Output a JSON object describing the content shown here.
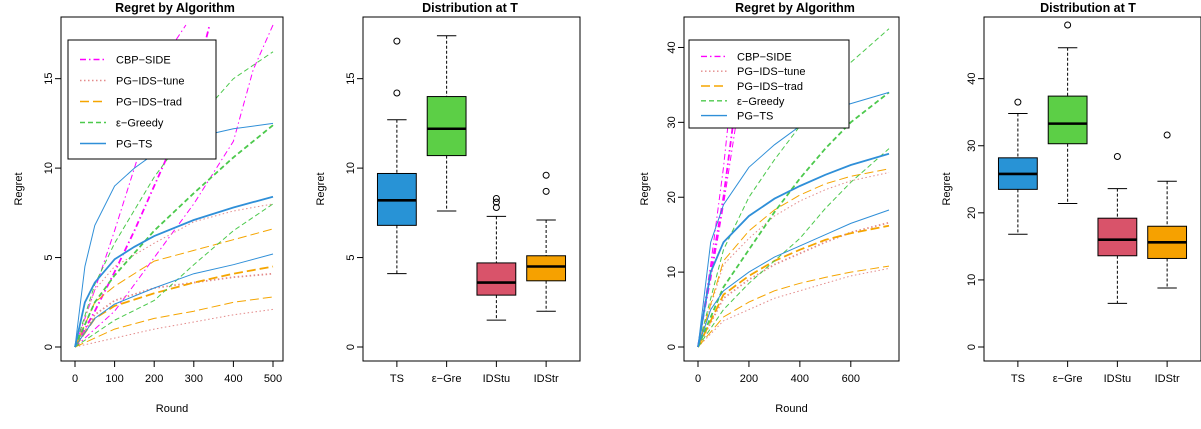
{
  "colors": {
    "cbp_side": "#ff00ff",
    "pg_ids_tune": "#e38a8a",
    "pg_ids_trad": "#f5a500",
    "e_greedy": "#4cc94c",
    "pg_ts": "#2f8fd8",
    "box_ts": "#2893d6",
    "box_egreedy": "#5ccf46",
    "box_idstu": "#d9536a",
    "box_idstr": "#f6a100"
  },
  "chart_data": [
    {
      "type": "line",
      "title": "Regret by Algorithm",
      "xlabel": "Round",
      "ylabel": "Regret",
      "xlim": [
        0,
        500
      ],
      "ylim": [
        0,
        18
      ],
      "xticks": [
        0,
        100,
        200,
        300,
        400,
        500
      ],
      "yticks": [
        0,
        5,
        10,
        15
      ],
      "grid": false,
      "legend_position": "top-left",
      "legend": [
        {
          "label": "CBP−SIDE",
          "color_key": "cbp_side",
          "style": "dashdot"
        },
        {
          "label": "PG−IDS−tune",
          "color_key": "pg_ids_tune",
          "style": "dotted"
        },
        {
          "label": "PG−IDS−trad",
          "color_key": "pg_ids_trad",
          "style": "longdash"
        },
        {
          "label": "ε−Greedy",
          "color_key": "e_greedy",
          "style": "dashed"
        },
        {
          "label": "PG−TS",
          "color_key": "pg_ts",
          "style": "solid"
        }
      ],
      "series": [
        {
          "name": "CBP−SIDE",
          "role": "mean",
          "x": [
            0,
            50,
            100,
            150,
            200,
            250,
            300,
            340
          ],
          "y": [
            0,
            2.0,
            4.2,
            6.5,
            9.0,
            11.5,
            14.5,
            18
          ]
        },
        {
          "name": "CBP−SIDE",
          "role": "upper",
          "x": [
            0,
            50,
            100,
            150,
            200,
            250,
            280
          ],
          "y": [
            0,
            3.2,
            6.5,
            10.0,
            13.5,
            17.0,
            18
          ]
        },
        {
          "name": "CBP−SIDE",
          "role": "lower",
          "x": [
            0,
            100,
            200,
            300,
            400,
            450,
            500
          ],
          "y": [
            0,
            2.0,
            5.0,
            8.0,
            11.5,
            15.5,
            18
          ]
        },
        {
          "name": "PG−IDS−tune",
          "role": "mean",
          "x": [
            0,
            50,
            100,
            200,
            300,
            400,
            500
          ],
          "y": [
            0,
            1.8,
            2.6,
            3.3,
            3.6,
            3.9,
            4.1
          ]
        },
        {
          "name": "PG−IDS−tune",
          "role": "upper",
          "x": [
            0,
            50,
            100,
            200,
            300,
            400,
            500
          ],
          "y": [
            0,
            3.2,
            4.5,
            5.8,
            7.0,
            7.6,
            8.0
          ]
        },
        {
          "name": "PG−IDS−tune",
          "role": "lower",
          "x": [
            0,
            100,
            200,
            300,
            400,
            500
          ],
          "y": [
            0,
            0.5,
            1.0,
            1.4,
            1.8,
            2.1
          ]
        },
        {
          "name": "PG−IDS−trad",
          "role": "mean",
          "x": [
            0,
            50,
            100,
            200,
            300,
            400,
            500
          ],
          "y": [
            0,
            1.6,
            2.3,
            3.0,
            3.6,
            4.1,
            4.5
          ]
        },
        {
          "name": "PG−IDS−trad",
          "role": "upper",
          "x": [
            0,
            50,
            100,
            200,
            300,
            400,
            500
          ],
          "y": [
            0,
            2.5,
            3.4,
            4.8,
            5.4,
            6.0,
            6.6
          ]
        },
        {
          "name": "PG−IDS−trad",
          "role": "lower",
          "x": [
            0,
            100,
            200,
            300,
            400,
            500
          ],
          "y": [
            0,
            1.0,
            1.6,
            2.0,
            2.5,
            2.8
          ]
        },
        {
          "name": "ε−Greedy",
          "role": "mean",
          "x": [
            0,
            50,
            100,
            200,
            300,
            400,
            500
          ],
          "y": [
            0,
            2.5,
            4.0,
            6.5,
            8.6,
            10.6,
            12.4
          ]
        },
        {
          "name": "ε−Greedy",
          "role": "upper",
          "x": [
            0,
            50,
            100,
            200,
            300,
            400,
            500
          ],
          "y": [
            0,
            3.5,
            5.8,
            9.5,
            12.5,
            15.0,
            16.5
          ]
        },
        {
          "name": "ε−Greedy",
          "role": "lower",
          "x": [
            0,
            100,
            200,
            300,
            400,
            500
          ],
          "y": [
            0,
            1.5,
            2.6,
            4.6,
            6.5,
            8.0
          ]
        },
        {
          "name": "PG−TS",
          "role": "mean",
          "x": [
            0,
            25,
            50,
            100,
            150,
            200,
            300,
            400,
            500
          ],
          "y": [
            0,
            2.5,
            3.6,
            4.9,
            5.6,
            6.2,
            7.1,
            7.8,
            8.4
          ]
        },
        {
          "name": "PG−TS",
          "role": "upper",
          "x": [
            0,
            25,
            50,
            100,
            150,
            200,
            300,
            400,
            500
          ],
          "y": [
            0,
            4.5,
            6.8,
            9.0,
            10.0,
            10.8,
            11.7,
            12.2,
            12.5
          ]
        },
        {
          "name": "PG−TS",
          "role": "lower",
          "x": [
            0,
            50,
            100,
            200,
            300,
            400,
            500
          ],
          "y": [
            0,
            1.6,
            2.4,
            3.3,
            4.1,
            4.6,
            5.2
          ]
        }
      ]
    },
    {
      "type": "box",
      "title": "Distribution at T",
      "xlabel": "",
      "ylabel": "Regret",
      "ylim": [
        0,
        18
      ],
      "yticks": [
        0,
        5,
        10,
        15
      ],
      "categories": [
        "TS",
        "ε−Gre",
        "IDStu",
        "IDStr"
      ],
      "boxes": [
        {
          "label": "TS",
          "color_key": "box_ts",
          "min": 4.1,
          "q1": 6.8,
          "median": 8.2,
          "q3": 9.7,
          "max": 12.7,
          "outliers": [
            14.2,
            17.1
          ]
        },
        {
          "label": "ε−Gre",
          "color_key": "box_egreedy",
          "min": 7.6,
          "q1": 10.7,
          "median": 12.2,
          "q3": 14.0,
          "max": 17.4,
          "outliers": []
        },
        {
          "label": "IDStu",
          "color_key": "box_idstu",
          "min": 1.5,
          "q1": 2.9,
          "median": 3.6,
          "q3": 4.7,
          "max": 7.3,
          "outliers": [
            7.8,
            8.1,
            8.3
          ]
        },
        {
          "label": "IDStr",
          "color_key": "box_idstr",
          "min": 2.0,
          "q1": 3.7,
          "median": 4.5,
          "q3": 5.1,
          "max": 7.1,
          "outliers": [
            8.7,
            9.6
          ]
        }
      ]
    },
    {
      "type": "line",
      "title": "Regret by Algorithm",
      "xlabel": "Round",
      "ylabel": "Regret",
      "xlim": [
        0,
        750
      ],
      "ylim": [
        0,
        43
      ],
      "xticks": [
        0,
        200,
        400,
        600
      ],
      "yticks": [
        0,
        10,
        20,
        30,
        40
      ],
      "grid": false,
      "legend_position": "top-left",
      "legend": [
        {
          "label": "CBP−SIDE",
          "color_key": "cbp_side",
          "style": "dashdot"
        },
        {
          "label": "PG−IDS−tune",
          "color_key": "pg_ids_tune",
          "style": "dotted"
        },
        {
          "label": "PG−IDS−trad",
          "color_key": "pg_ids_trad",
          "style": "longdash"
        },
        {
          "label": "ε−Greedy",
          "color_key": "e_greedy",
          "style": "dashed"
        },
        {
          "label": "PG−TS",
          "color_key": "pg_ts",
          "style": "solid"
        }
      ],
      "series": [
        {
          "name": "CBP−SIDE",
          "role": "mean",
          "x": [
            0,
            50,
            100,
            150,
            180
          ],
          "y": [
            0,
            10,
            20,
            33,
            40
          ]
        },
        {
          "name": "CBP−SIDE",
          "role": "upper",
          "x": [
            0,
            50,
            100,
            150
          ],
          "y": [
            0,
            11,
            24,
            40
          ]
        },
        {
          "name": "CBP−SIDE",
          "role": "lower",
          "x": [
            0,
            50,
            100,
            150,
            200
          ],
          "y": [
            0,
            9,
            19,
            30,
            38
          ]
        },
        {
          "name": "PG−IDS−tune",
          "role": "mean",
          "x": [
            0,
            100,
            200,
            300,
            400,
            500,
            600,
            750
          ],
          "y": [
            0,
            6.5,
            9.0,
            11.0,
            12.5,
            14.0,
            15.3,
            16.6
          ]
        },
        {
          "name": "PG−IDS−tune",
          "role": "upper",
          "x": [
            0,
            100,
            200,
            300,
            400,
            500,
            600,
            750
          ],
          "y": [
            0,
            11,
            14.5,
            17.5,
            19.5,
            21.0,
            22.2,
            23.3
          ]
        },
        {
          "name": "PG−IDS−tune",
          "role": "lower",
          "x": [
            0,
            100,
            200,
            300,
            400,
            500,
            600,
            750
          ],
          "y": [
            0,
            3.5,
            5.0,
            6.5,
            7.5,
            8.5,
            9.5,
            10.5
          ]
        },
        {
          "name": "PG−IDS−trad",
          "role": "mean",
          "x": [
            0,
            100,
            200,
            300,
            400,
            500,
            600,
            750
          ],
          "y": [
            0,
            7.0,
            9.5,
            11.5,
            13.0,
            14.3,
            15.2,
            16.2
          ]
        },
        {
          "name": "PG−IDS−trad",
          "role": "upper",
          "x": [
            0,
            100,
            200,
            300,
            400,
            500,
            600,
            750
          ],
          "y": [
            0,
            11.5,
            15.5,
            18.3,
            20.3,
            21.8,
            22.8,
            23.8
          ]
        },
        {
          "name": "PG−IDS−trad",
          "role": "lower",
          "x": [
            0,
            100,
            200,
            300,
            400,
            500,
            600,
            750
          ],
          "y": [
            0,
            4.0,
            6.0,
            7.5,
            8.5,
            9.3,
            10.0,
            10.8
          ]
        },
        {
          "name": "ε−Greedy",
          "role": "mean",
          "x": [
            0,
            100,
            200,
            300,
            400,
            500,
            600,
            750
          ],
          "y": [
            0,
            8.0,
            13.0,
            18.0,
            22.5,
            26.5,
            30.0,
            34.0
          ]
        },
        {
          "name": "ε−Greedy",
          "role": "upper",
          "x": [
            0,
            100,
            200,
            300,
            400,
            500,
            600,
            750
          ],
          "y": [
            0,
            13.0,
            20.0,
            25.0,
            29.5,
            34.0,
            38.0,
            42.5
          ]
        },
        {
          "name": "ε−Greedy",
          "role": "lower",
          "x": [
            0,
            100,
            200,
            300,
            400,
            500,
            600,
            750
          ],
          "y": [
            0,
            5.0,
            8.5,
            11.5,
            14.5,
            18.5,
            22.0,
            26.5
          ]
        },
        {
          "name": "PG−TS",
          "role": "mean",
          "x": [
            0,
            50,
            100,
            200,
            300,
            400,
            500,
            600,
            750
          ],
          "y": [
            0,
            10.0,
            14.0,
            17.5,
            19.8,
            21.5,
            23.0,
            24.3,
            25.8
          ]
        },
        {
          "name": "PG−TS",
          "role": "upper",
          "x": [
            0,
            50,
            100,
            200,
            300,
            400,
            500,
            600,
            750
          ],
          "y": [
            0,
            14.0,
            19.0,
            24.0,
            27.0,
            29.5,
            31.5,
            32.5,
            34.0
          ]
        },
        {
          "name": "PG−TS",
          "role": "lower",
          "x": [
            0,
            50,
            100,
            200,
            300,
            400,
            500,
            600,
            750
          ],
          "y": [
            0,
            5.0,
            7.5,
            10.0,
            12.0,
            13.5,
            15.0,
            16.5,
            18.3
          ]
        }
      ]
    },
    {
      "type": "box",
      "title": "Distribution at T",
      "xlabel": "",
      "ylabel": "Regret",
      "ylim": [
        0,
        48
      ],
      "yticks": [
        0,
        10,
        20,
        30,
        40
      ],
      "categories": [
        "TS",
        "ε−Gre",
        "IDStu",
        "IDStr"
      ],
      "boxes": [
        {
          "label": "TS",
          "color_key": "box_ts",
          "min": 16.8,
          "q1": 23.5,
          "median": 25.8,
          "q3": 28.2,
          "max": 34.8,
          "outliers": [
            36.5
          ]
        },
        {
          "label": "ε−Gre",
          "color_key": "box_egreedy",
          "min": 21.4,
          "q1": 30.3,
          "median": 33.3,
          "q3": 37.4,
          "max": 44.6,
          "outliers": [
            48.0
          ]
        },
        {
          "label": "IDStu",
          "color_key": "box_idstu",
          "min": 6.5,
          "q1": 13.6,
          "median": 16.0,
          "q3": 19.2,
          "max": 23.6,
          "outliers": [
            28.4
          ]
        },
        {
          "label": "IDStr",
          "color_key": "box_idstr",
          "min": 8.8,
          "q1": 13.2,
          "median": 15.6,
          "q3": 18.0,
          "max": 24.7,
          "outliers": [
            31.6
          ]
        }
      ]
    }
  ]
}
